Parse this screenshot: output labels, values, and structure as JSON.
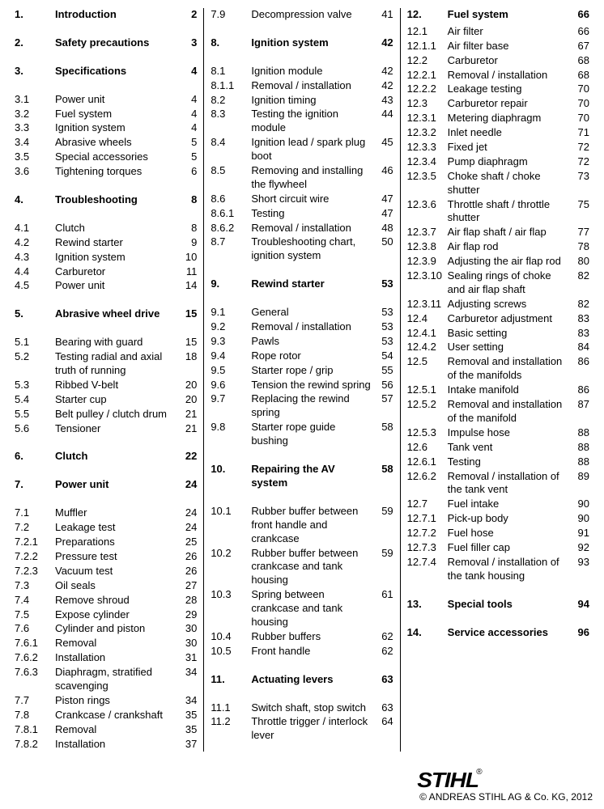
{
  "columns": [
    [
      {
        "section": true,
        "first": true,
        "num": "1.",
        "title": "Introduction",
        "pg": "2"
      },
      {
        "section": true,
        "num": "2.",
        "title": "Safety precautions",
        "pg": "3"
      },
      {
        "section": true,
        "num": "3.",
        "title": "Specifications",
        "pg": "4"
      },
      {
        "num": "3.1",
        "title": "Power unit",
        "pg": "4"
      },
      {
        "num": "3.2",
        "title": "Fuel system",
        "pg": "4"
      },
      {
        "num": "3.3",
        "title": "Ignition system",
        "pg": "4"
      },
      {
        "num": "3.4",
        "title": "Abrasive wheels",
        "pg": "5"
      },
      {
        "num": "3.5",
        "title": "Special accessories",
        "pg": "5"
      },
      {
        "num": "3.6",
        "title": "Tightening torques",
        "pg": "6"
      },
      {
        "section": true,
        "num": "4.",
        "title": "Troubleshooting",
        "pg": "8"
      },
      {
        "num": "4.1",
        "title": "Clutch",
        "pg": "8"
      },
      {
        "num": "4.2",
        "title": "Rewind starter",
        "pg": "9"
      },
      {
        "num": "4.3",
        "title": "Ignition system",
        "pg": "10"
      },
      {
        "num": "4.4",
        "title": "Carburetor",
        "pg": "11"
      },
      {
        "num": "4.5",
        "title": "Power unit",
        "pg": "14"
      },
      {
        "section": true,
        "num": "5.",
        "title": "Abrasive wheel drive",
        "pg": "15"
      },
      {
        "num": "5.1",
        "title": "Bearing with guard",
        "pg": "15"
      },
      {
        "num": "5.2",
        "title": "Testing radial and axial truth of running",
        "pg": "18"
      },
      {
        "num": "5.3",
        "title": "Ribbed V-belt",
        "pg": "20"
      },
      {
        "num": "5.4",
        "title": "Starter cup",
        "pg": "20"
      },
      {
        "num": "5.5",
        "title": "Belt pulley / clutch drum",
        "pg": "21"
      },
      {
        "num": "5.6",
        "title": "Tensioner",
        "pg": "21"
      },
      {
        "section": true,
        "num": "6.",
        "title": "Clutch",
        "pg": "22"
      },
      {
        "section": true,
        "num": "7.",
        "title": "Power unit",
        "pg": "24"
      },
      {
        "num": "7.1",
        "title": "Muffler",
        "pg": "24"
      },
      {
        "num": "7.2",
        "title": "Leakage test",
        "pg": "24"
      },
      {
        "num": "7.2.1",
        "title": "Preparations",
        "pg": "25"
      },
      {
        "num": "7.2.2",
        "title": "Pressure test",
        "pg": "26"
      },
      {
        "num": "7.2.3",
        "title": "Vacuum test",
        "pg": "26"
      },
      {
        "num": "7.3",
        "title": "Oil seals",
        "pg": "27"
      },
      {
        "num": "7.4",
        "title": "Remove shroud",
        "pg": "28"
      },
      {
        "num": "7.5",
        "title": "Expose cylinder",
        "pg": "29"
      },
      {
        "num": "7.6",
        "title": "Cylinder and piston",
        "pg": "30"
      },
      {
        "num": "7.6.1",
        "title": "Removal",
        "pg": "30"
      },
      {
        "num": "7.6.2",
        "title": "Installation",
        "pg": "31"
      },
      {
        "num": "7.6.3",
        "title": "Diaphragm, stratified scavenging",
        "pg": "34"
      },
      {
        "num": "7.7",
        "title": "Piston rings",
        "pg": "34"
      },
      {
        "num": "7.8",
        "title": "Crankcase / crankshaft",
        "pg": "35"
      },
      {
        "num": "7.8.1",
        "title": "Removal",
        "pg": "35"
      },
      {
        "num": "7.8.2",
        "title": "Installation",
        "pg": "37"
      }
    ],
    [
      {
        "num": "7.9",
        "title": "Decompression valve",
        "pg": "41",
        "first": true
      },
      {
        "section": true,
        "num": "8.",
        "title": "Ignition system",
        "pg": "42"
      },
      {
        "num": "8.1",
        "title": "Ignition module",
        "pg": "42"
      },
      {
        "num": "8.1.1",
        "title": "Removal / installation",
        "pg": "42"
      },
      {
        "num": "8.2",
        "title": "Ignition timing",
        "pg": "43"
      },
      {
        "num": "8.3",
        "title": "Testing the ignition module",
        "pg": "44"
      },
      {
        "num": "8.4",
        "title": "Ignition lead / spark plug boot",
        "pg": "45"
      },
      {
        "num": "8.5",
        "title": "Removing and installing the flywheel",
        "pg": "46"
      },
      {
        "num": "8.6",
        "title": "Short circuit wire",
        "pg": "47"
      },
      {
        "num": "8.6.1",
        "title": "Testing",
        "pg": "47"
      },
      {
        "num": "8.6.2",
        "title": "Removal / installation",
        "pg": "48"
      },
      {
        "num": "8.7",
        "title": "Troubleshooting chart, ignition system",
        "pg": "50"
      },
      {
        "section": true,
        "num": "9.",
        "title": "Rewind starter",
        "pg": "53"
      },
      {
        "num": "9.1",
        "title": "General",
        "pg": "53"
      },
      {
        "num": "9.2",
        "title": "Removal / installation",
        "pg": "53"
      },
      {
        "num": "9.3",
        "title": "Pawls",
        "pg": "53"
      },
      {
        "num": "9.4",
        "title": "Rope rotor",
        "pg": "54"
      },
      {
        "num": "9.5",
        "title": "Starter rope / grip",
        "pg": "55"
      },
      {
        "num": "9.6",
        "title": "Tension the rewind spring",
        "pg": "56"
      },
      {
        "num": "9.7",
        "title": "Replacing the rewind spring",
        "pg": "57"
      },
      {
        "num": "9.8",
        "title": "Starter rope guide bushing",
        "pg": "58"
      },
      {
        "section": true,
        "num": "10.",
        "title": "Repairing the AV system",
        "pg": "58"
      },
      {
        "num": "10.1",
        "title": "Rubber buffer between front handle and crankcase",
        "pg": "59"
      },
      {
        "num": "10.2",
        "title": "Rubber buffer between crankcase and tank housing",
        "pg": "59"
      },
      {
        "num": "10.3",
        "title": "Spring between crankcase and tank housing",
        "pg": "61"
      },
      {
        "num": "10.4",
        "title": "Rubber buffers",
        "pg": "62"
      },
      {
        "num": "10.5",
        "title": "Front handle",
        "pg": "62"
      },
      {
        "section": true,
        "num": "11.",
        "title": "Actuating levers",
        "pg": "63"
      },
      {
        "num": "11.1",
        "title": "Switch shaft, stop switch",
        "pg": "63"
      },
      {
        "num": "11.2",
        "title": "Throttle trigger / interlock lever",
        "pg": "64"
      }
    ],
    [
      {
        "section": true,
        "first": true,
        "num": "12.",
        "title": "Fuel system",
        "pg": "66",
        "topmargin": "0"
      },
      {
        "num": "12.1",
        "title": "Air filter",
        "pg": "66"
      },
      {
        "num": "12.1.1",
        "title": "Air filter base",
        "pg": "67"
      },
      {
        "num": "12.2",
        "title": "Carburetor",
        "pg": "68"
      },
      {
        "num": "12.2.1",
        "title": "Removal / installation",
        "pg": "68"
      },
      {
        "num": "12.2.2",
        "title": "Leakage testing",
        "pg": "70"
      },
      {
        "num": "12.3",
        "title": "Carburetor repair",
        "pg": "70"
      },
      {
        "num": "12.3.1",
        "title": "Metering diaphragm",
        "pg": "70"
      },
      {
        "num": "12.3.2",
        "title": "Inlet needle",
        "pg": "71"
      },
      {
        "num": "12.3.3",
        "title": "Fixed jet",
        "pg": "72"
      },
      {
        "num": "12.3.4",
        "title": "Pump diaphragm",
        "pg": "72"
      },
      {
        "num": "12.3.5",
        "title": "Choke shaft / choke shutter",
        "pg": "73"
      },
      {
        "num": "12.3.6",
        "title": "Throttle shaft / throttle shutter",
        "pg": "75"
      },
      {
        "num": "12.3.7",
        "title": "Air flap shaft / air flap",
        "pg": "77"
      },
      {
        "num": "12.3.8",
        "title": "Air flap rod",
        "pg": "78"
      },
      {
        "num": "12.3.9",
        "title": "Adjusting the air flap rod",
        "pg": "80"
      },
      {
        "num": "12.3.10",
        "title": "Sealing rings of choke and air flap shaft",
        "pg": "82"
      },
      {
        "num": "12.3.11",
        "title": "Adjusting screws",
        "pg": "82"
      },
      {
        "num": "12.4",
        "title": "Carburetor adjustment",
        "pg": "83"
      },
      {
        "num": "12.4.1",
        "title": "Basic setting",
        "pg": "83"
      },
      {
        "num": "12.4.2",
        "title": "User setting",
        "pg": "84"
      },
      {
        "num": "12.5",
        "title": "Removal and installation of the manifolds",
        "pg": "86"
      },
      {
        "num": "12.5.1",
        "title": "Intake manifold",
        "pg": "86"
      },
      {
        "num": "12.5.2",
        "title": "Removal and installation of the manifold",
        "pg": "87"
      },
      {
        "num": "12.5.3",
        "title": "Impulse hose",
        "pg": "88"
      },
      {
        "num": "12.6",
        "title": "Tank vent",
        "pg": "88"
      },
      {
        "num": "12.6.1",
        "title": "Testing",
        "pg": "88"
      },
      {
        "num": "12.6.2",
        "title": "Removal / installation of the tank vent",
        "pg": "89"
      },
      {
        "num": "12.7",
        "title": "Fuel intake",
        "pg": "90"
      },
      {
        "num": "12.7.1",
        "title": "Pick-up body",
        "pg": "90"
      },
      {
        "num": "12.7.2",
        "title": "Fuel hose",
        "pg": "91"
      },
      {
        "num": "12.7.3",
        "title": "Fuel filler cap",
        "pg": "92"
      },
      {
        "num": "12.7.4",
        "title": "Removal / installation of the tank housing",
        "pg": "93"
      },
      {
        "section": true,
        "num": "13.",
        "title": "Special tools",
        "pg": "94"
      },
      {
        "section": true,
        "num": "14.",
        "title": "Service accessories",
        "pg": "96"
      }
    ]
  ],
  "footer": {
    "brand": "STIHL",
    "copyright": "© ANDREAS STIHL AG & Co. KG, 2012"
  }
}
